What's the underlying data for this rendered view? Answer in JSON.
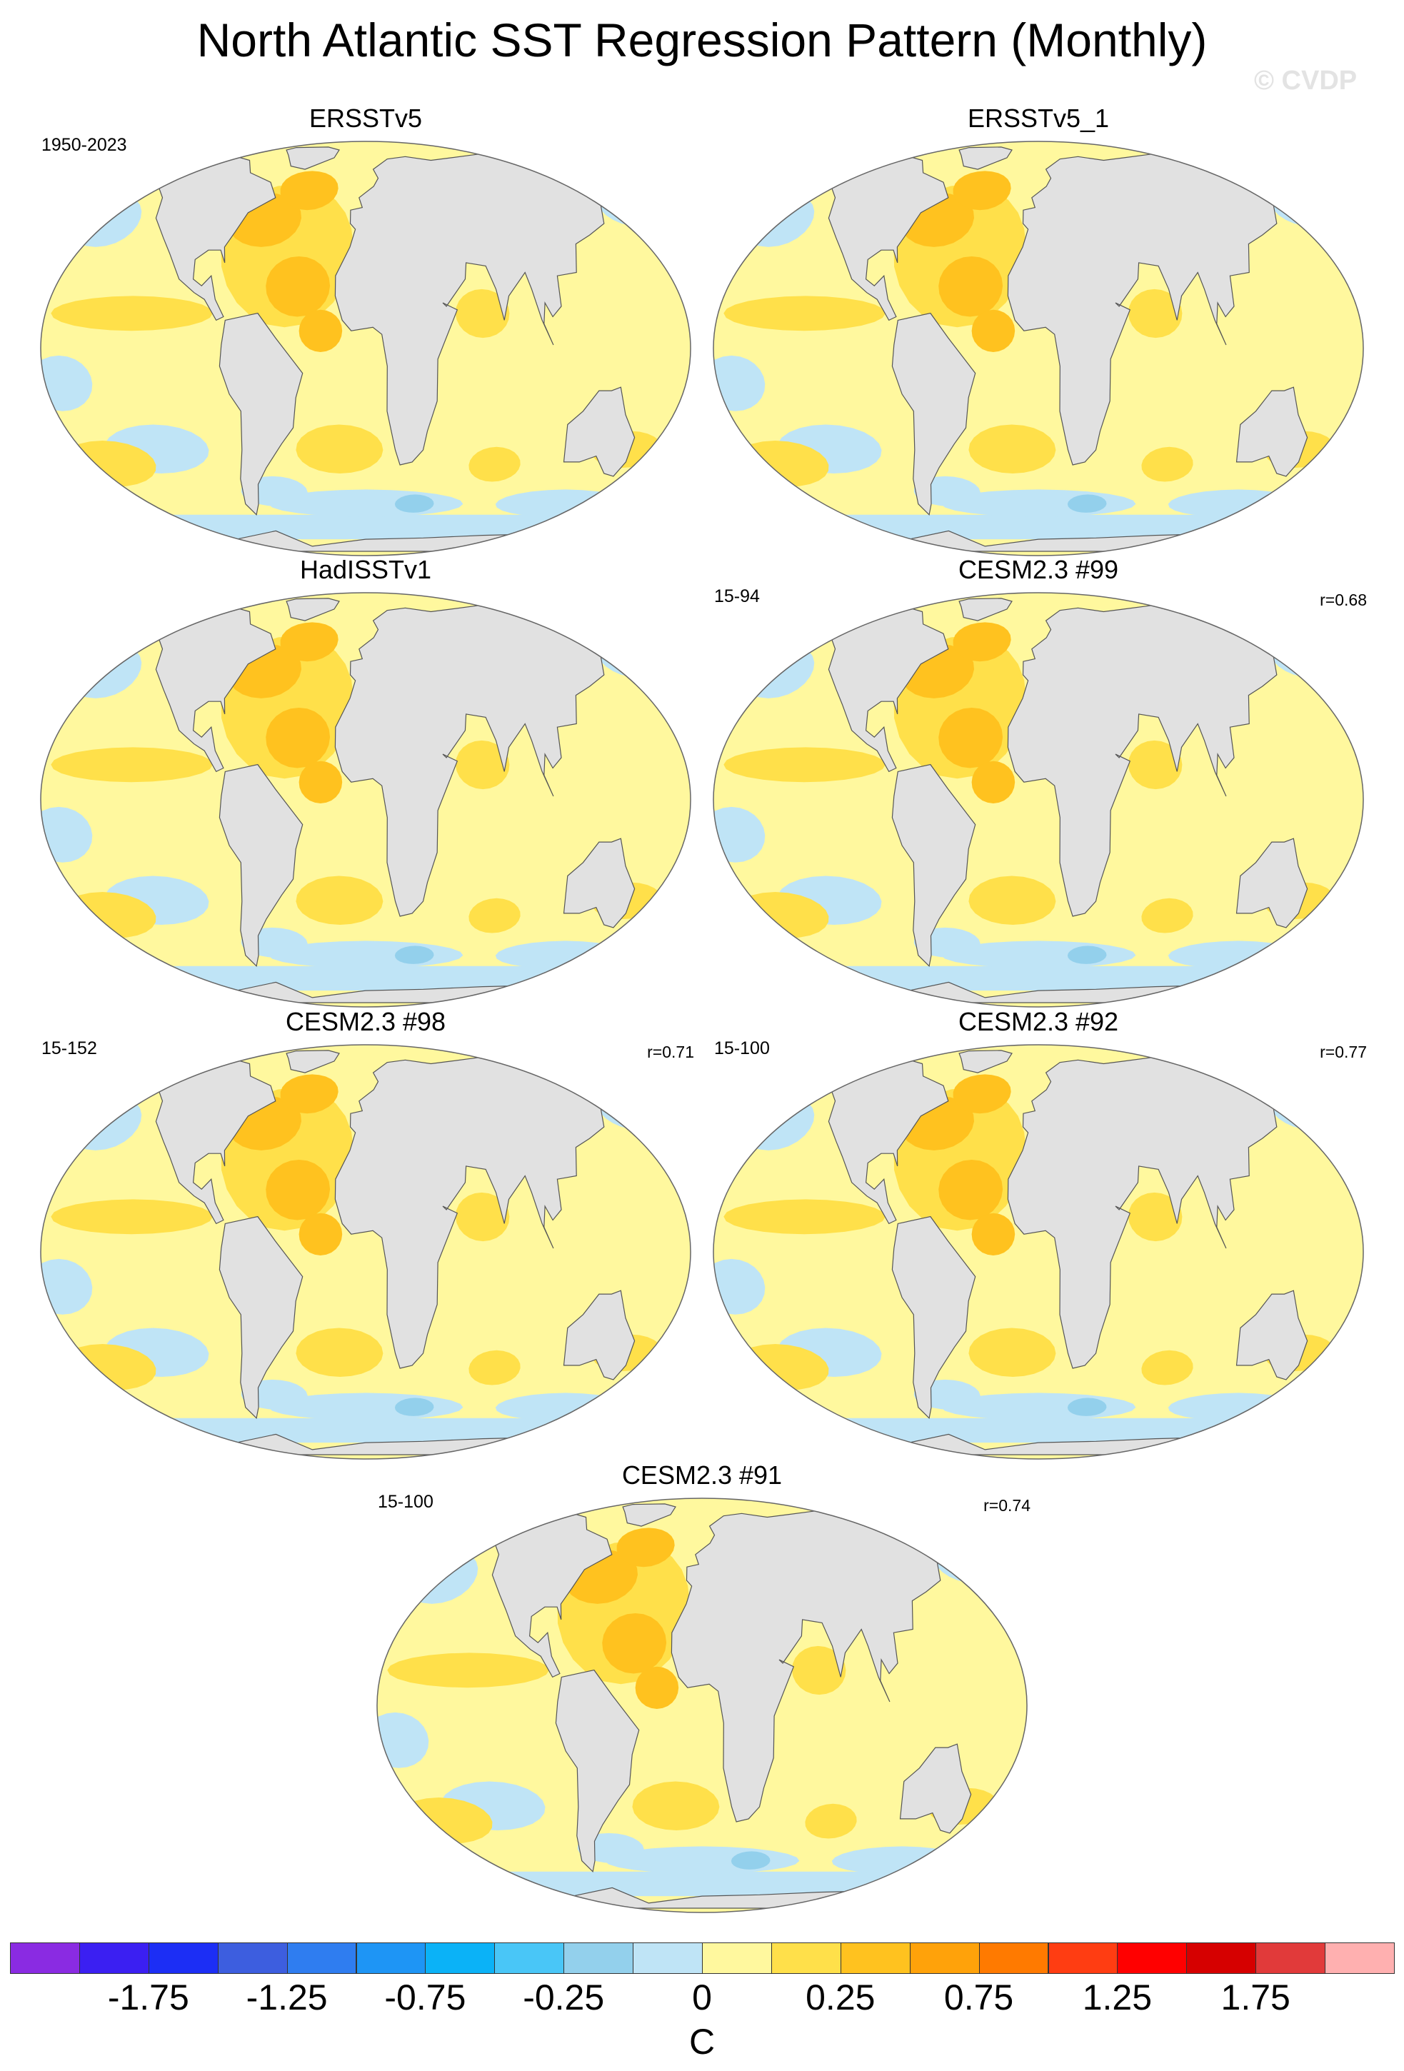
{
  "figure": {
    "title": "North Atlantic SST Regression Pattern (Monthly)",
    "watermark": "© CVDP"
  },
  "panels": [
    {
      "title": "ERSSTv5",
      "period": "1950-2023",
      "corr": ""
    },
    {
      "title": "ERSSTv5_1",
      "period": "",
      "corr": ""
    },
    {
      "title": "HadISSTv1",
      "period": "",
      "corr": ""
    },
    {
      "title": "CESM2.3 #99",
      "period": "15-94",
      "corr": "r=0.68"
    },
    {
      "title": "CESM2.3 #98",
      "period": "15-152",
      "corr": "r=0.71"
    },
    {
      "title": "CESM2.3 #92",
      "period": "15-100",
      "corr": "r=0.77"
    },
    {
      "title": "CESM2.3 #91",
      "period": "15-100",
      "corr": "r=0.74"
    }
  ],
  "colorbar": {
    "units": "C",
    "labels": [
      "-1.75",
      "-1.25",
      "-0.75",
      "-0.25",
      "0",
      "0.25",
      "0.75",
      "1.25",
      "1.75"
    ],
    "colors": [
      "#8a2be2",
      "#3b1ff2",
      "#1c2ef5",
      "#3d5edf",
      "#2f7df0",
      "#1e95f5",
      "#0bb2f7",
      "#49c6f7",
      "#93d0ec",
      "#bfe4f6",
      "#fff89e",
      "#ffe04a",
      "#ffc21f",
      "#ffa20a",
      "#ff7a00",
      "#ff3d12",
      "#ff0000",
      "#d60000",
      "#e13a3a",
      "#ffb0b0"
    ]
  },
  "map_colors": {
    "ocean_base": "#fff89e",
    "cool": "#bfe4f6",
    "cooler": "#93d0ec",
    "warm": "#ffe04a",
    "warmer": "#ffc21f",
    "land": "#e1e1e1",
    "coast": "#555555"
  }
}
